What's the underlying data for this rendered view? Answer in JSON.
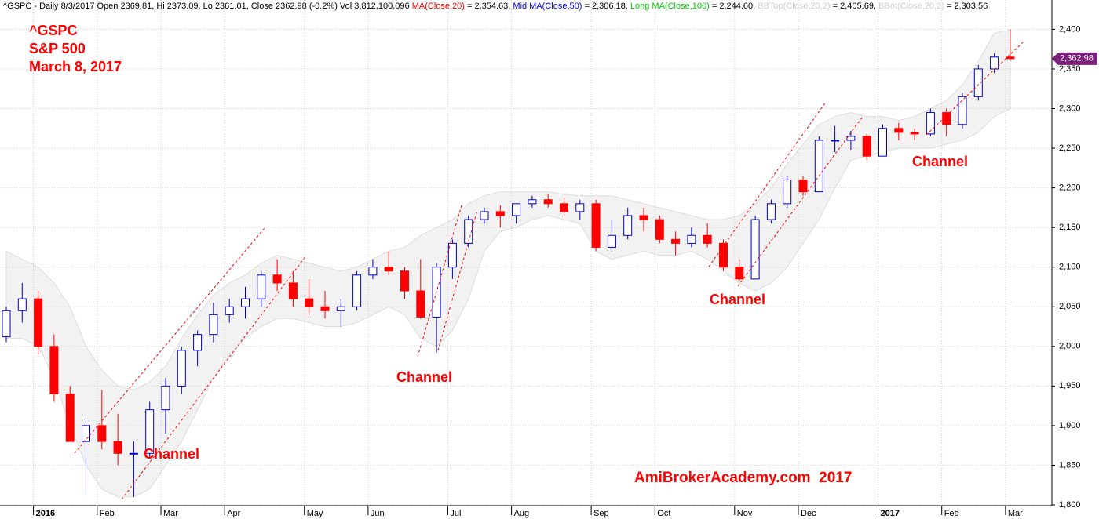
{
  "chart_data": {
    "type": "candlestick",
    "header": [
      {
        "text": "^GSPC - Daily 8/3/2017 Open 2369.81, Hi 2373.09, Lo 2361.01, Close 2362.98 (-0.2%) Vol 3,812,100,096 ",
        "color": "#000000"
      },
      {
        "text": "MA(Close,20)",
        "color": "#ff0000"
      },
      {
        "text": " = 2,354.63, ",
        "color": "#000000"
      },
      {
        "text": "Mid MA(Close,50)",
        "color": "#0000ff"
      },
      {
        "text": " = 2,306.18, ",
        "color": "#000000"
      },
      {
        "text": "Long MA(Close,100)",
        "color": "#00cc00"
      },
      {
        "text": " = 2,244.60, ",
        "color": "#000000"
      },
      {
        "text": "BBTop(Close,20,2)",
        "color": "#cccccc"
      },
      {
        "text": " = 2,405.69, ",
        "color": "#000000"
      },
      {
        "text": "BBot(Close,20,2)",
        "color": "#cccccc"
      },
      {
        "text": " = 2,303.56",
        "color": "#000000"
      }
    ],
    "annotations": [
      "^GSPC",
      "S&P 500",
      "March 8, 2017",
      "Channel",
      "Channel",
      "Channel",
      "Channel",
      "AmiBrokerAcademy.com  2017"
    ],
    "categories": [
      null,
      null,
      "2016",
      null,
      null,
      null,
      "Feb",
      null,
      null,
      null,
      "Mar",
      null,
      null,
      null,
      "Apr",
      null,
      null,
      null,
      null,
      "May",
      null,
      null,
      null,
      "Jun",
      null,
      null,
      null,
      null,
      "Jul",
      null,
      null,
      null,
      "Aug",
      null,
      null,
      null,
      null,
      "Sep",
      null,
      null,
      null,
      "Oct",
      null,
      null,
      null,
      null,
      "Nov",
      null,
      null,
      null,
      "Dec",
      null,
      null,
      null,
      null,
      "2017",
      null,
      null,
      null,
      "Feb",
      null,
      null,
      null,
      "Mar"
    ],
    "open": [
      2012,
      2045,
      2060,
      2000,
      1940,
      1880,
      1900,
      1880,
      1865,
      1865,
      1920,
      1950,
      1995,
      2015,
      2040,
      2050,
      2060,
      2090,
      2080,
      2060,
      2050,
      2045,
      2050,
      2090,
      2100,
      2095,
      2070,
      2037,
      2100,
      2130,
      2160,
      2170,
      2165,
      2180,
      2185,
      2180,
      2170,
      2180,
      2125,
      2140,
      2165,
      2160,
      2135,
      2130,
      2140,
      2130,
      2100,
      2085,
      2160,
      2180,
      2210,
      2195,
      2260,
      2260,
      2265,
      2240,
      2275,
      2270,
      2268,
      2295,
      2280,
      2315,
      2350,
      2365
    ],
    "high": [
      2050,
      2080,
      2070,
      2015,
      1950,
      1910,
      1945,
      1915,
      1880,
      1930,
      1960,
      2000,
      2020,
      2055,
      2060,
      2075,
      2095,
      2110,
      2095,
      2085,
      2070,
      2060,
      2095,
      2110,
      2120,
      2100,
      2110,
      2105,
      2135,
      2165,
      2175,
      2178,
      2180,
      2190,
      2192,
      2188,
      2185,
      2185,
      2160,
      2175,
      2175,
      2165,
      2145,
      2150,
      2155,
      2135,
      2110,
      2165,
      2185,
      2215,
      2215,
      2265,
      2278,
      2272,
      2268,
      2280,
      2282,
      2275,
      2300,
      2300,
      2320,
      2355,
      2370,
      2400
    ],
    "low": [
      2005,
      2030,
      1990,
      1930,
      1880,
      1812,
      1870,
      1850,
      1810,
      1860,
      1890,
      1940,
      1975,
      2005,
      2030,
      2035,
      2050,
      2070,
      2050,
      2040,
      2035,
      2025,
      2045,
      2085,
      2090,
      2060,
      2035,
      1992,
      2085,
      2125,
      2155,
      2150,
      2155,
      2175,
      2175,
      2165,
      2160,
      2120,
      2120,
      2135,
      2145,
      2130,
      2115,
      2125,
      2125,
      2095,
      2083,
      2085,
      2155,
      2175,
      2190,
      2195,
      2245,
      2248,
      2235,
      2240,
      2260,
      2260,
      2265,
      2265,
      2275,
      2310,
      2345,
      2360
    ],
    "close": [
      2045,
      2060,
      2000,
      1940,
      1880,
      1900,
      1880,
      1865,
      1865,
      1920,
      1950,
      1995,
      2015,
      2040,
      2050,
      2060,
      2090,
      2080,
      2060,
      2050,
      2045,
      2050,
      2090,
      2100,
      2095,
      2070,
      2037,
      2100,
      2130,
      2160,
      2170,
      2165,
      2180,
      2185,
      2180,
      2170,
      2180,
      2125,
      2140,
      2165,
      2160,
      2135,
      2130,
      2140,
      2130,
      2100,
      2085,
      2160,
      2180,
      2210,
      2195,
      2260,
      2260,
      2265,
      2240,
      2275,
      2270,
      2268,
      2295,
      2280,
      2315,
      2350,
      2365,
      2362.98
    ],
    "bb_upper": [
      2120,
      2110,
      2100,
      2080,
      2050,
      2000,
      1970,
      1950,
      1945,
      1955,
      1975,
      2010,
      2040,
      2065,
      2080,
      2090,
      2105,
      2115,
      2110,
      2105,
      2100,
      2095,
      2100,
      2110,
      2120,
      2125,
      2140,
      2150,
      2160,
      2180,
      2190,
      2195,
      2195,
      2195,
      2195,
      2192,
      2190,
      2190,
      2190,
      2185,
      2180,
      2175,
      2170,
      2165,
      2160,
      2160,
      2165,
      2180,
      2200,
      2230,
      2255,
      2280,
      2290,
      2295,
      2290,
      2290,
      2285,
      2290,
      2300,
      2310,
      2330,
      2360,
      2395,
      2400
    ],
    "bb_lower": [
      2010,
      2010,
      2000,
      1960,
      1900,
      1850,
      1820,
      1810,
      1810,
      1820,
      1850,
      1880,
      1920,
      1960,
      1990,
      2010,
      2025,
      2035,
      2035,
      2030,
      2025,
      2025,
      2030,
      2040,
      2050,
      2040,
      2010,
      2000,
      2020,
      2060,
      2120,
      2145,
      2150,
      2160,
      2165,
      2160,
      2155,
      2120,
      2110,
      2115,
      2120,
      2115,
      2115,
      2120,
      2110,
      2095,
      2080,
      2070,
      2080,
      2100,
      2130,
      2160,
      2200,
      2235,
      2240,
      2245,
      2250,
      2250,
      2250,
      2255,
      2260,
      2270,
      2290,
      2300
    ],
    "up_color": "#0000cc",
    "down_color": "#ff0000",
    "band_color": "#f2f2f2",
    "last_price": {
      "value": 2362.98,
      "label": "2,362.98"
    },
    "ylim": [
      1799,
      2437
    ],
    "yticks": [
      {
        "value": 1800,
        "label": "1,800"
      },
      {
        "value": 1850,
        "label": "1,850"
      },
      {
        "value": 1900,
        "label": "1,900"
      },
      {
        "value": 1950,
        "label": "1,950"
      },
      {
        "value": 2000,
        "label": "2,000"
      },
      {
        "value": 2050,
        "label": "2,050"
      },
      {
        "value": 2100,
        "label": "2,100"
      },
      {
        "value": 2150,
        "label": "2,150"
      },
      {
        "value": 2200,
        "label": "2,200"
      },
      {
        "value": 2250,
        "label": "2,250"
      },
      {
        "value": 2300,
        "label": "2,300"
      },
      {
        "value": 2350,
        "label": "2,350"
      },
      {
        "value": 2400,
        "label": "2,400"
      }
    ],
    "grid": true
  }
}
